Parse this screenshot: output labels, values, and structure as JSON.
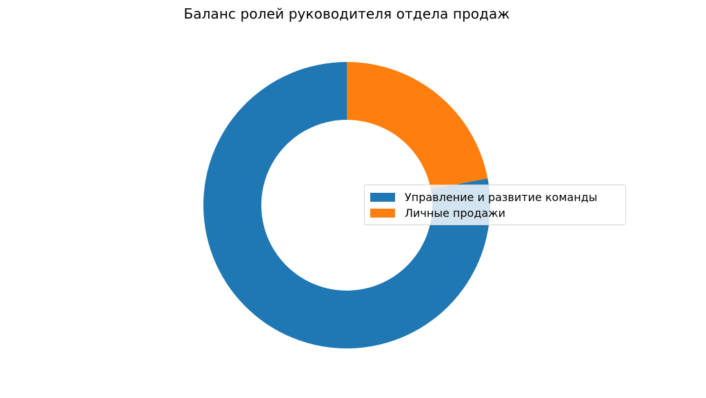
{
  "chart_data": {
    "type": "pie",
    "variant": "donut",
    "title": "Баланс ролей руководителя отдела продаж",
    "categories": [
      "Управление и развитие команды",
      "Личные продажи"
    ],
    "values": [
      78,
      22
    ],
    "colors": [
      "#1f77b4",
      "#ff7f0e"
    ],
    "start_angle": 90,
    "direction": "clockwise",
    "legend": {
      "placement": "center-right",
      "entries": [
        "Управление и развитие команды",
        "Личные продажи"
      ]
    }
  }
}
